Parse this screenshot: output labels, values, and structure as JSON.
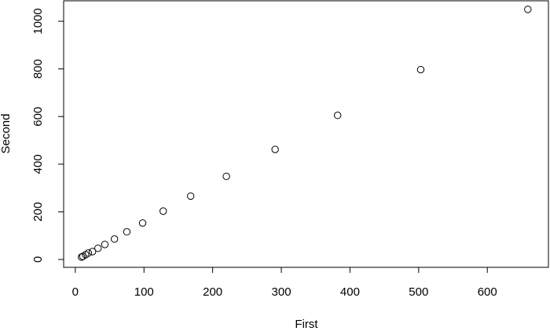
{
  "chart_data": {
    "type": "scatter",
    "x_label": "First",
    "y_label": "Second",
    "x": [
      9,
      11,
      15,
      19,
      25,
      33,
      43,
      57,
      75,
      98,
      128,
      168,
      220,
      291,
      382,
      503,
      659
    ],
    "values": [
      10,
      13,
      20,
      27,
      33,
      47,
      63,
      86,
      116,
      153,
      203,
      266,
      349,
      462,
      605,
      797,
      1050
    ],
    "color": "#000000",
    "xlim": [
      -17,
      689
    ],
    "ylim": [
      -33,
      1086
    ],
    "xticks": [
      0,
      100,
      200,
      300,
      400,
      500,
      600
    ],
    "yticks": [
      0,
      200,
      400,
      600,
      800,
      1000
    ]
  }
}
